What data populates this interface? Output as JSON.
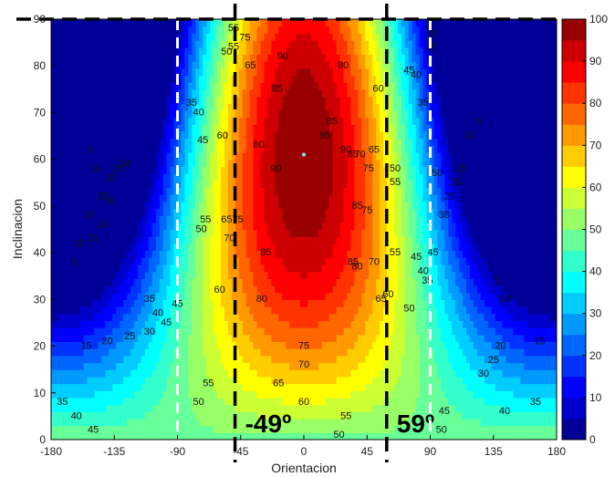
{
  "chart_data": {
    "type": "heatmap",
    "xlabel": "Orientacion",
    "ylabel": "Inclinacion",
    "xlim": [
      -180,
      180
    ],
    "ylim": [
      0,
      90
    ],
    "x_ticks": [
      -180,
      -135,
      -90,
      -45,
      0,
      45,
      90,
      135,
      180
    ],
    "y_ticks": [
      0,
      10,
      20,
      30,
      40,
      50,
      60,
      70,
      80,
      90
    ],
    "colorbar": {
      "min": 0,
      "max": 100,
      "ticks": [
        0,
        10,
        20,
        30,
        40,
        50,
        60,
        70,
        80,
        90,
        100
      ],
      "levels": [
        0,
        5,
        10,
        15,
        20,
        25,
        30,
        35,
        40,
        45,
        50,
        55,
        60,
        65,
        70,
        75,
        80,
        85,
        90,
        95,
        100
      ],
      "colormap": "jet"
    },
    "maximum_point": {
      "x": 0,
      "y": 61
    },
    "vertical_markers": [
      {
        "x": -49,
        "label": "-49º",
        "style": "dashed-black"
      },
      {
        "x": 59,
        "label": "59º",
        "style": "dashed-black"
      },
      {
        "x": -90,
        "label": "",
        "style": "dashed-white"
      },
      {
        "x": 90,
        "label": "",
        "style": "dashed-white"
      }
    ],
    "horizontal_markers": [
      {
        "y": 90,
        "style": "dashed-black"
      }
    ],
    "contour_labels": [
      {
        "x": -152,
        "y": 62,
        "value": "5"
      },
      {
        "x": -148,
        "y": 58,
        "value": "10"
      },
      {
        "x": -153,
        "y": 48,
        "value": "15"
      },
      {
        "x": -150,
        "y": 43,
        "value": "20"
      },
      {
        "x": -143,
        "y": 52,
        "value": "25"
      },
      {
        "x": -138,
        "y": 51,
        "value": "30"
      },
      {
        "x": -143,
        "y": 46,
        "value": "10"
      },
      {
        "x": -163,
        "y": 38,
        "value": "5"
      },
      {
        "x": -160,
        "y": 42,
        "value": "15"
      },
      {
        "x": -138,
        "y": 56,
        "value": "20"
      },
      {
        "x": -132,
        "y": 58,
        "value": "25"
      },
      {
        "x": -127,
        "y": 59,
        "value": "30"
      },
      {
        "x": -110,
        "y": 30,
        "value": "35"
      },
      {
        "x": -104,
        "y": 27,
        "value": "40"
      },
      {
        "x": -98,
        "y": 25,
        "value": "45"
      },
      {
        "x": -80,
        "y": 72,
        "value": "35"
      },
      {
        "x": -75,
        "y": 70,
        "value": "40"
      },
      {
        "x": -72,
        "y": 64,
        "value": "45"
      },
      {
        "x": -70,
        "y": 47,
        "value": "55"
      },
      {
        "x": -73,
        "y": 45,
        "value": "50"
      },
      {
        "x": -58,
        "y": 65,
        "value": "60"
      },
      {
        "x": -55,
        "y": 47,
        "value": "65"
      },
      {
        "x": -53,
        "y": 43,
        "value": "70"
      },
      {
        "x": -47,
        "y": 47,
        "value": "75"
      },
      {
        "x": -32,
        "y": 63,
        "value": "80"
      },
      {
        "x": -27,
        "y": 40,
        "value": "85"
      },
      {
        "x": -20,
        "y": 58,
        "value": "90"
      },
      {
        "x": -19,
        "y": 75,
        "value": "85"
      },
      {
        "x": -15,
        "y": 82,
        "value": "90"
      },
      {
        "x": -55,
        "y": 83,
        "value": "50"
      },
      {
        "x": -50,
        "y": 84,
        "value": "55"
      },
      {
        "x": -50,
        "y": 88,
        "value": "55"
      },
      {
        "x": -42,
        "y": 86,
        "value": "75"
      },
      {
        "x": -38,
        "y": 80,
        "value": "65"
      },
      {
        "x": -30,
        "y": 30,
        "value": "80"
      },
      {
        "x": 0,
        "y": 20,
        "value": "75"
      },
      {
        "x": 0,
        "y": 16,
        "value": "70"
      },
      {
        "x": -18,
        "y": 12,
        "value": "65"
      },
      {
        "x": 0,
        "y": 8,
        "value": "60"
      },
      {
        "x": 30,
        "y": 5,
        "value": "55"
      },
      {
        "x": 25,
        "y": 1,
        "value": "50"
      },
      {
        "x": -68,
        "y": 12,
        "value": "55"
      },
      {
        "x": -75,
        "y": 8,
        "value": "50"
      },
      {
        "x": -60,
        "y": 32,
        "value": "60"
      },
      {
        "x": -90,
        "y": 29,
        "value": "45"
      },
      {
        "x": -110,
        "y": 23,
        "value": "30"
      },
      {
        "x": -124,
        "y": 22,
        "value": "25"
      },
      {
        "x": -140,
        "y": 21,
        "value": "20"
      },
      {
        "x": -155,
        "y": 20,
        "value": "15"
      },
      {
        "x": -172,
        "y": 8,
        "value": "35"
      },
      {
        "x": -162,
        "y": 5,
        "value": "40"
      },
      {
        "x": -150,
        "y": 2,
        "value": "45"
      },
      {
        "x": 15,
        "y": 65,
        "value": "95"
      },
      {
        "x": 20,
        "y": 68,
        "value": "85"
      },
      {
        "x": 28,
        "y": 80,
        "value": "80"
      },
      {
        "x": 30,
        "y": 62,
        "value": "90"
      },
      {
        "x": 35,
        "y": 61,
        "value": "85"
      },
      {
        "x": 40,
        "y": 61,
        "value": "70"
      },
      {
        "x": 46,
        "y": 58,
        "value": "75"
      },
      {
        "x": 38,
        "y": 50,
        "value": "85"
      },
      {
        "x": 45,
        "y": 49,
        "value": "75"
      },
      {
        "x": 35,
        "y": 38,
        "value": "85"
      },
      {
        "x": 38,
        "y": 37,
        "value": "80"
      },
      {
        "x": 50,
        "y": 38,
        "value": "70"
      },
      {
        "x": 55,
        "y": 30,
        "value": "65"
      },
      {
        "x": 60,
        "y": 31,
        "value": "60"
      },
      {
        "x": 53,
        "y": 75,
        "value": "60"
      },
      {
        "x": 50,
        "y": 62,
        "value": "65"
      },
      {
        "x": 65,
        "y": 58,
        "value": "50"
      },
      {
        "x": 65,
        "y": 55,
        "value": "55"
      },
      {
        "x": 65,
        "y": 40,
        "value": "55"
      },
      {
        "x": 75,
        "y": 28,
        "value": "50"
      },
      {
        "x": 80,
        "y": 39,
        "value": "45"
      },
      {
        "x": 85,
        "y": 36,
        "value": "40"
      },
      {
        "x": 88,
        "y": 34,
        "value": "35"
      },
      {
        "x": 75,
        "y": 79,
        "value": "45"
      },
      {
        "x": 80,
        "y": 78,
        "value": "40"
      },
      {
        "x": 85,
        "y": 72,
        "value": "35"
      },
      {
        "x": 92,
        "y": 87,
        "value": "20"
      },
      {
        "x": 90,
        "y": 84,
        "value": "25"
      },
      {
        "x": 95,
        "y": 57,
        "value": "50"
      },
      {
        "x": 92,
        "y": 40,
        "value": "45"
      },
      {
        "x": 100,
        "y": 48,
        "value": "30"
      },
      {
        "x": 104,
        "y": 52,
        "value": "25"
      },
      {
        "x": 108,
        "y": 55,
        "value": "20"
      },
      {
        "x": 112,
        "y": 58,
        "value": "15"
      },
      {
        "x": 118,
        "y": 65,
        "value": "10"
      },
      {
        "x": 125,
        "y": 68,
        "value": "5"
      },
      {
        "x": 138,
        "y": 34,
        "value": "5"
      },
      {
        "x": 143,
        "y": 30,
        "value": "10"
      },
      {
        "x": 140,
        "y": 20,
        "value": "20"
      },
      {
        "x": 135,
        "y": 17,
        "value": "25"
      },
      {
        "x": 128,
        "y": 14,
        "value": "30"
      },
      {
        "x": 168,
        "y": 21,
        "value": "15"
      },
      {
        "x": 143,
        "y": 6,
        "value": "40"
      },
      {
        "x": 165,
        "y": 8,
        "value": "35"
      },
      {
        "x": 100,
        "y": 6,
        "value": "45"
      },
      {
        "x": 98,
        "y": 2,
        "value": "50"
      }
    ]
  }
}
